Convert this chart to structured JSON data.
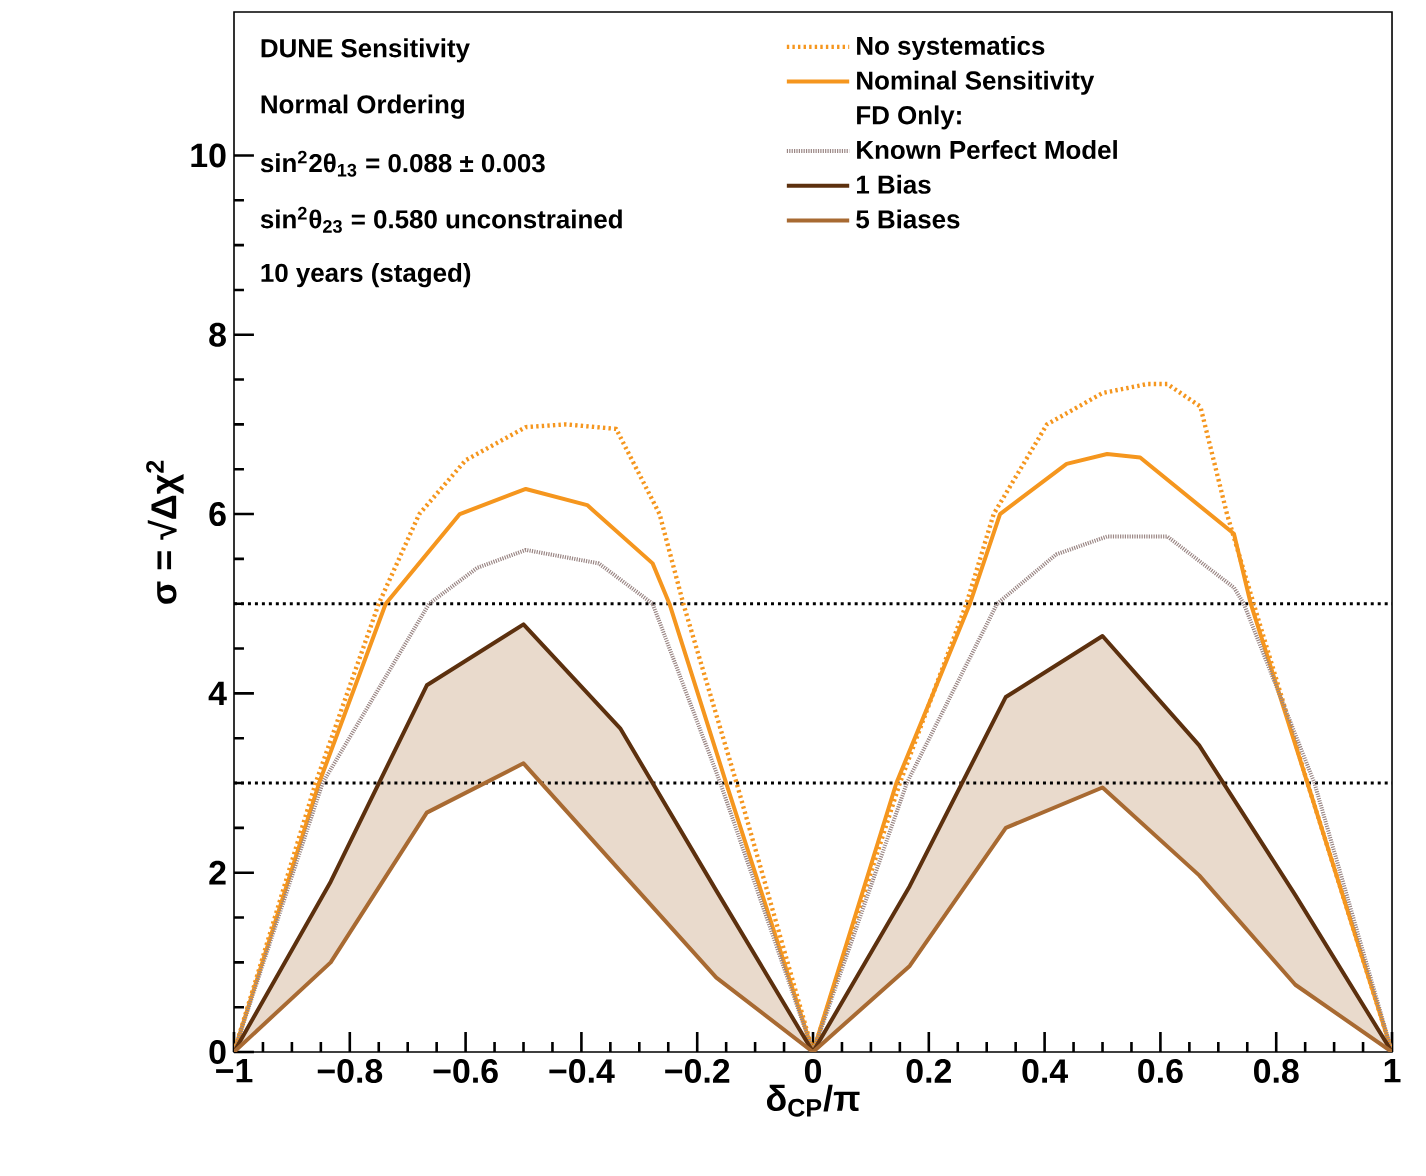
{
  "chart_data": {
    "type": "line",
    "xlabel": "δ$_{CP}$/π",
    "ylabel": "σ = √Δχ$^{2}$",
    "legend_title": "FD Only:",
    "annotations": [
      "DUNE Sensitivity",
      "Normal Ordering",
      "sin$^{2}$2θ$_{13}$ = 0.088 ± 0.003",
      "sin$^{2}$θ$_{23}$ = 0.580 unconstrained",
      "10 years (staged)"
    ],
    "xlim": [
      -1,
      1
    ],
    "ylim": [
      0,
      11.6
    ],
    "xticks": [
      {
        "value": -1,
        "label": "−1"
      },
      {
        "value": -0.8,
        "label": "−0.8"
      },
      {
        "value": -0.6,
        "label": "−0.6"
      },
      {
        "value": -0.4,
        "label": "−0.4"
      },
      {
        "value": -0.2,
        "label": "−0.2"
      },
      0,
      0.2,
      0.4,
      0.6,
      0.8,
      1
    ],
    "yticks": [
      0,
      2,
      4,
      6,
      8,
      10
    ],
    "legend": "top right",
    "series": [
      {
        "name": "No systematics",
        "color": "#f5961e",
        "line_style": "dotted",
        "x": [
          -1,
          -0.859,
          -0.75,
          -0.68,
          -0.6,
          -0.496,
          -0.426,
          -0.34,
          -0.265,
          -0.224,
          -0.132,
          0,
          0.15,
          0.265,
          0.312,
          0.404,
          0.5,
          0.577,
          0.612,
          0.669,
          0.715,
          0.761,
          0.854,
          1
        ],
        "values": [
          0,
          3,
          5,
          6,
          6.6,
          6.97,
          7.0,
          6.95,
          6,
          5,
          3,
          0,
          3,
          5,
          6,
          7,
          7.35,
          7.45,
          7.45,
          7.2,
          6,
          5,
          3,
          0
        ]
      },
      {
        "name": "Nominal Sensitivity",
        "color": "#f5961e",
        "line_style": "solid",
        "x": [
          -1,
          -0.853,
          -0.738,
          -0.61,
          -0.496,
          -0.39,
          -0.277,
          -0.248,
          -0.15,
          0,
          0.144,
          0.271,
          0.323,
          0.438,
          0.508,
          0.565,
          0.727,
          0.756,
          0.854,
          1
        ],
        "values": [
          0,
          3,
          5,
          6,
          6.28,
          6.1,
          5.45,
          5,
          3,
          0,
          3,
          5,
          6,
          6.56,
          6.67,
          6.63,
          5.78,
          5,
          3,
          0
        ]
      },
      {
        "name": "Known Perfect Model",
        "color": "#9a8684",
        "line_style": "dotted",
        "x": [
          -1,
          -0.847,
          -0.663,
          -0.58,
          -0.496,
          -0.37,
          -0.277,
          -0.16,
          0,
          0.162,
          0.318,
          0.42,
          0.508,
          0.612,
          0.727,
          0.744,
          0.866,
          1
        ],
        "values": [
          0,
          3,
          5,
          5.4,
          5.6,
          5.45,
          5,
          3,
          0,
          3,
          5,
          5.55,
          5.75,
          5.75,
          5.18,
          5,
          3,
          0
        ]
      },
      {
        "name": "1 Bias",
        "color": "#5c300e",
        "line_style": "solid",
        "x": [
          -1,
          -0.833,
          -0.667,
          -0.5,
          -0.333,
          -0.167,
          0,
          0.167,
          0.333,
          0.5,
          0.667,
          0.833,
          1
        ],
        "values": [
          0,
          1.9,
          4.09,
          4.77,
          3.61,
          1.8,
          0,
          1.85,
          3.96,
          4.64,
          3.42,
          1.75,
          0
        ]
      },
      {
        "name": "5 Biases",
        "color": "#a86a32",
        "line_style": "solid",
        "x": [
          -1,
          -0.833,
          -0.667,
          -0.5,
          -0.333,
          -0.167,
          0,
          0.167,
          0.333,
          0.5,
          0.667,
          0.833,
          1
        ],
        "values": [
          0,
          1.0,
          2.67,
          3.22,
          2.02,
          0.83,
          0,
          0.96,
          2.5,
          2.95,
          1.97,
          0.75,
          0
        ],
        "lower": [
          0,
          1.0,
          2.67,
          3.22,
          2.02,
          0.83,
          0,
          0.96,
          2.5,
          2.95,
          1.97,
          0.75,
          0
        ],
        "upper": [
          0,
          1.9,
          4.09,
          4.77,
          3.61,
          1.8,
          0,
          1.85,
          3.96,
          4.64,
          3.42,
          1.75,
          0
        ]
      }
    ],
    "ref_lines": [
      {
        "axis": "y",
        "value": 5,
        "color": "#000000",
        "line_style": "dotted"
      },
      {
        "axis": "y",
        "value": 3,
        "color": "#000000",
        "line_style": "dotted"
      }
    ]
  }
}
